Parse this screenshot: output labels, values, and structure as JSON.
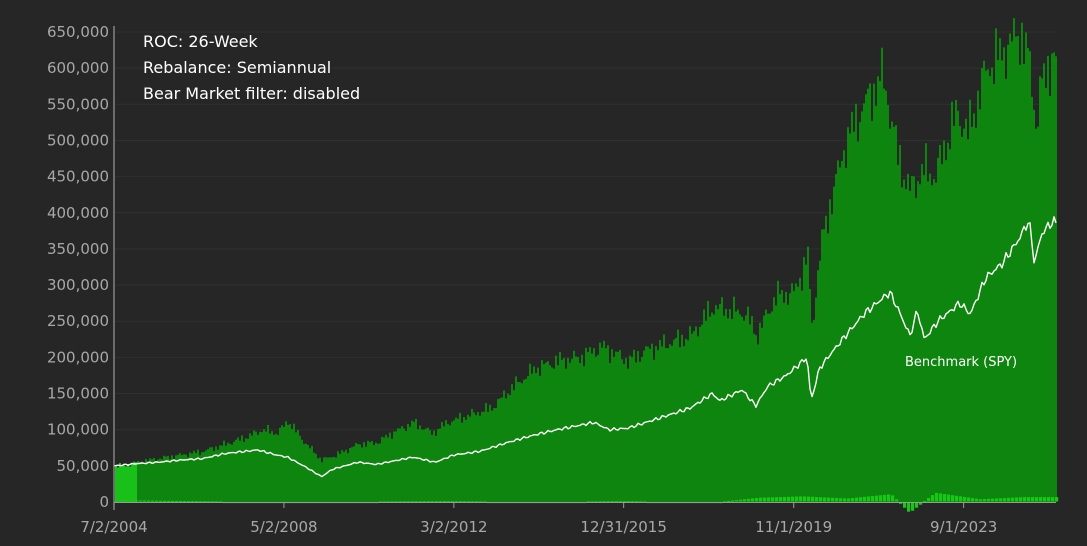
{
  "chart_data": {
    "type": "area",
    "annotations": [
      "ROC: 26-Week",
      "Rebalance: Semiannual",
      "Bear Market filter: disabled"
    ],
    "x_tick_labels": [
      "7/2/2004",
      "5/2/2008",
      "3/2/2012",
      "12/31/2015",
      "11/1/2019",
      "9/1/2023"
    ],
    "x_range": [
      "2004-07-02",
      "2025-10-01"
    ],
    "ylim": [
      0,
      650000
    ],
    "y_ticks": [
      0,
      50000,
      100000,
      150000,
      200000,
      250000,
      300000,
      350000,
      400000,
      450000,
      500000,
      550000,
      600000,
      650000
    ],
    "grid": true,
    "colors": {
      "background": "#262626",
      "portfolio": "#0e850e",
      "portfolio_first_bars": "#19c019",
      "drawdown_positive": "#16c916",
      "drawdown_negative": "#16c916",
      "benchmark": "#ffffff",
      "grid": "#303030",
      "axis": "#9a9a9a"
    },
    "series": [
      {
        "kind": "area",
        "points": [
          [
            "2004-07-02",
            50000
          ],
          [
            "2004-10-01",
            51000
          ],
          [
            "2005-01-01",
            55000
          ],
          [
            "2005-07-01",
            60000
          ],
          [
            "2006-01-01",
            65000
          ],
          [
            "2006-07-01",
            70000
          ],
          [
            "2007-01-01",
            80000
          ],
          [
            "2007-07-01",
            90000
          ],
          [
            "2007-11-01",
            100000
          ],
          [
            "2008-03-01",
            95000
          ],
          [
            "2008-06-01",
            112000
          ],
          [
            "2008-10-01",
            85000
          ],
          [
            "2009-03-01",
            58000
          ],
          [
            "2009-07-01",
            65000
          ],
          [
            "2010-01-01",
            80000
          ],
          [
            "2010-06-01",
            82000
          ],
          [
            "2010-10-01",
            95000
          ],
          [
            "2011-04-01",
            110000
          ],
          [
            "2011-09-01",
            95000
          ],
          [
            "2012-01-01",
            110000
          ],
          [
            "2012-07-01",
            120000
          ],
          [
            "2013-01-01",
            130000
          ],
          [
            "2013-07-01",
            160000
          ],
          [
            "2014-01-01",
            185000
          ],
          [
            "2014-07-01",
            195000
          ],
          [
            "2015-01-01",
            200000
          ],
          [
            "2015-07-01",
            215000
          ],
          [
            "2016-02-01",
            195000
          ],
          [
            "2016-07-01",
            210000
          ],
          [
            "2017-01-01",
            220000
          ],
          [
            "2017-07-01",
            230000
          ],
          [
            "2018-01-01",
            270000
          ],
          [
            "2018-10-01",
            260000
          ],
          [
            "2018-12-24",
            230000
          ],
          [
            "2019-06-01",
            285000
          ],
          [
            "2019-11-01",
            290000
          ],
          [
            "2020-02-19",
            340000
          ],
          [
            "2020-03-23",
            240000
          ],
          [
            "2020-06-01",
            350000
          ],
          [
            "2020-09-01",
            420000
          ],
          [
            "2021-01-01",
            500000
          ],
          [
            "2021-06-01",
            550000
          ],
          [
            "2021-11-01",
            590000
          ],
          [
            "2022-03-01",
            480000
          ],
          [
            "2022-06-01",
            430000
          ],
          [
            "2022-10-01",
            460000
          ],
          [
            "2023-01-01",
            450000
          ],
          [
            "2023-07-01",
            540000
          ],
          [
            "2023-10-01",
            510000
          ],
          [
            "2024-03-01",
            600000
          ],
          [
            "2024-07-01",
            620000
          ],
          [
            "2024-12-01",
            650000
          ],
          [
            "2025-03-01",
            600000
          ],
          [
            "2025-04-08",
            520000
          ],
          [
            "2025-06-01",
            580000
          ],
          [
            "2025-09-01",
            620000
          ],
          [
            "2025-10-01",
            590000
          ]
        ]
      },
      {
        "name": "Benchmark (SPY)",
        "kind": "line",
        "points": [
          [
            "2004-07-02",
            50000
          ],
          [
            "2005-01-01",
            53000
          ],
          [
            "2005-07-01",
            55000
          ],
          [
            "2006-01-01",
            58000
          ],
          [
            "2006-07-01",
            60000
          ],
          [
            "2007-01-01",
            67000
          ],
          [
            "2007-10-01",
            72000
          ],
          [
            "2008-03-01",
            65000
          ],
          [
            "2008-06-01",
            62000
          ],
          [
            "2008-11-01",
            48000
          ],
          [
            "2009-03-09",
            35000
          ],
          [
            "2009-06-01",
            45000
          ],
          [
            "2010-01-01",
            55000
          ],
          [
            "2010-06-01",
            52000
          ],
          [
            "2011-04-01",
            62000
          ],
          [
            "2011-10-01",
            55000
          ],
          [
            "2012-03-01",
            65000
          ],
          [
            "2012-10-01",
            70000
          ],
          [
            "2013-06-01",
            83000
          ],
          [
            "2014-01-01",
            93000
          ],
          [
            "2014-07-01",
            100000
          ],
          [
            "2015-05-01",
            110000
          ],
          [
            "2015-09-01",
            100000
          ],
          [
            "2016-02-01",
            102000
          ],
          [
            "2016-07-01",
            110000
          ],
          [
            "2017-01-01",
            120000
          ],
          [
            "2017-07-01",
            130000
          ],
          [
            "2018-01-01",
            150000
          ],
          [
            "2018-03-01",
            140000
          ],
          [
            "2018-09-01",
            155000
          ],
          [
            "2018-12-24",
            133000
          ],
          [
            "2019-04-01",
            160000
          ],
          [
            "2019-09-01",
            175000
          ],
          [
            "2020-02-19",
            200000
          ],
          [
            "2020-03-23",
            140000
          ],
          [
            "2020-06-01",
            185000
          ],
          [
            "2020-09-01",
            205000
          ],
          [
            "2021-01-01",
            230000
          ],
          [
            "2021-06-01",
            260000
          ],
          [
            "2021-12-31",
            290000
          ],
          [
            "2022-03-01",
            270000
          ],
          [
            "2022-06-16",
            230000
          ],
          [
            "2022-08-16",
            265000
          ],
          [
            "2022-10-12",
            225000
          ],
          [
            "2023-02-01",
            250000
          ],
          [
            "2023-07-31",
            275000
          ],
          [
            "2023-10-27",
            260000
          ],
          [
            "2024-03-01",
            310000
          ],
          [
            "2024-07-16",
            330000
          ],
          [
            "2024-12-05",
            365000
          ],
          [
            "2025-02-19",
            390000
          ],
          [
            "2025-04-08",
            330000
          ],
          [
            "2025-06-01",
            370000
          ],
          [
            "2025-09-01",
            388000
          ],
          [
            "2025-10-01",
            385000
          ]
        ]
      },
      {
        "kind": "bar",
        "points": [
          [
            "2004-07-02",
            2000
          ],
          [
            "2005-07-01",
            1000
          ],
          [
            "2008-01-01",
            -800
          ],
          [
            "2012-01-01",
            500
          ],
          [
            "2014-01-01",
            -600
          ],
          [
            "2016-01-01",
            500
          ],
          [
            "2018-01-01",
            -1500
          ],
          [
            "2019-01-01",
            5000
          ],
          [
            "2020-01-01",
            7000
          ],
          [
            "2021-01-01",
            4000
          ],
          [
            "2022-01-01",
            10000
          ],
          [
            "2022-06-01",
            -15000
          ],
          [
            "2023-01-01",
            12000
          ],
          [
            "2024-01-01",
            3000
          ],
          [
            "2025-01-01",
            6000
          ]
        ]
      }
    ]
  }
}
